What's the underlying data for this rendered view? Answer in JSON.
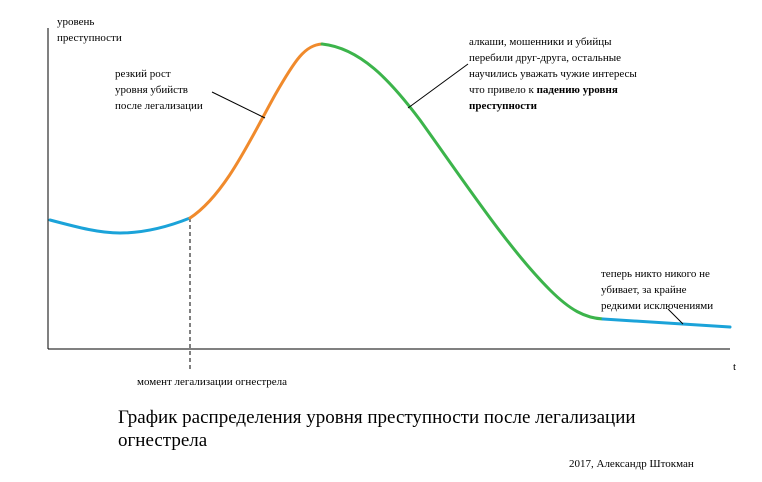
{
  "y_axis_label": "уровень\nпреступности",
  "x_axis_label": "t",
  "event_marker_label": "момент легализации огнестрела",
  "annotations": {
    "surge": "резкий рост\nуровня убийств\nпосле легализации",
    "peak_prefix": "алкаши, мошенники и убийцы\nперебили друг-друга, остальные\nнаучились уважать чужие интересы\nчто привело к ",
    "peak_bold": "падению уровня\nпреступности",
    "tail": "теперь никто никого не\nубивает, за крайне\nредкими исключениями"
  },
  "title": "График распределения уровня преступности после легализации огнестрела",
  "credit": "2017, Александр Штокман",
  "colors": {
    "before": "#1ba3d9",
    "rise": "#f08a2c",
    "fall": "#3cb44b",
    "tail": "#1ba3d9",
    "axis": "#000000"
  }
}
